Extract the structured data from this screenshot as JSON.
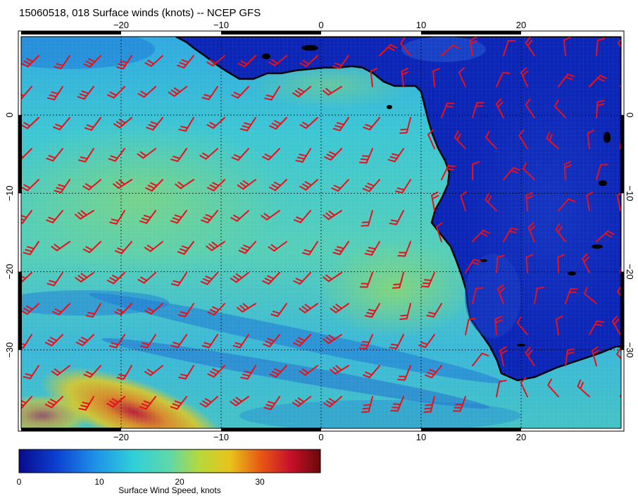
{
  "title": "15060518, 018 Surface winds (knots) -- NCEP GFS",
  "map": {
    "lon_range": [
      -30,
      30
    ],
    "lat_range": [
      -40,
      10
    ],
    "lon_ticks": [
      "−20",
      "−10",
      "0",
      "10",
      "20"
    ],
    "lat_ticks": [
      "0",
      "−10",
      "−20",
      "−30"
    ],
    "gridlines": "dotted",
    "coastline": "West/South-West Africa"
  },
  "colorbar": {
    "label": "Surface Wind Speed, knots",
    "ticks": [
      "0",
      "10",
      "20",
      "30"
    ],
    "colors": [
      "#0a0a8c",
      "#0b3ed0",
      "#1f8fe8",
      "#2fd0d8",
      "#5fd8a8",
      "#b8d83a",
      "#e8c31a",
      "#e85a14",
      "#c8102a",
      "#6a0a0a"
    ]
  },
  "colors": {
    "barb": "#e8101a",
    "land_low": "#0b25b8",
    "ocean_mid": "#38c0d8",
    "ocean_high": "#7bd89a"
  }
}
